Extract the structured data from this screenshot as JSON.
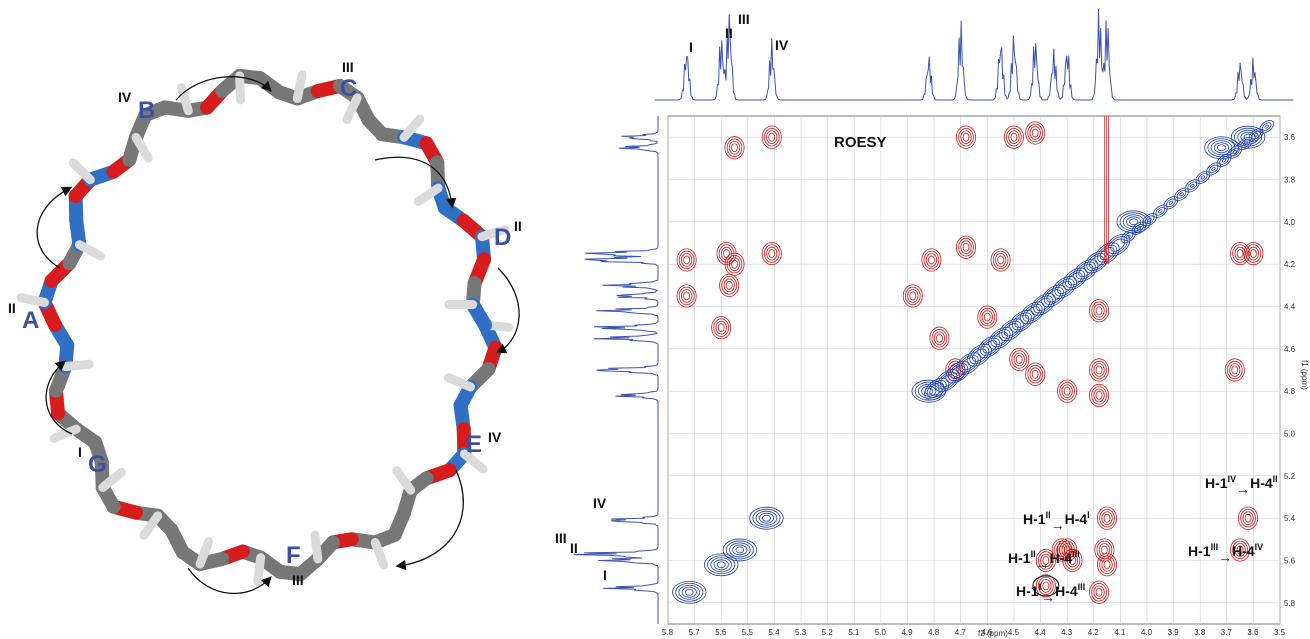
{
  "molecule": {
    "rings": [
      {
        "letter": "A",
        "roman": "II"
      },
      {
        "letter": "B",
        "roman": "IV"
      },
      {
        "letter": "C",
        "roman": "III"
      },
      {
        "letter": "D",
        "roman": "II"
      },
      {
        "letter": "E",
        "roman": "IV"
      },
      {
        "letter": "F",
        "roman": "III"
      },
      {
        "letter": "G",
        "roman": "I"
      }
    ]
  },
  "spectrum": {
    "title": "ROESY",
    "top_peak_labels": [
      "I",
      "II",
      "III",
      "IV"
    ],
    "left_peak_labels": [
      "IV",
      "III",
      "II",
      "I"
    ],
    "f2_label": "f2 (ppm)",
    "f1_label": "f1 (ppm)",
    "f2_ticks": [
      "5.8",
      "5.7",
      "5.6",
      "5.5",
      "5.4",
      "5.3",
      "5.2",
      "5.1",
      "5.0",
      "4.9",
      "4.8",
      "4.7",
      "4.6",
      "4.5",
      "4.4",
      "4.3",
      "4.2",
      "4.1",
      "4.0",
      "3.9",
      "3.8",
      "3.7",
      "3.6",
      "3.5"
    ],
    "f1_ticks": [
      "3.6",
      "3.8",
      "4.0",
      "4.2",
      "4.4",
      "4.6",
      "4.8",
      "5.0",
      "5.2",
      "5.4",
      "5.6",
      "5.8"
    ],
    "annotations": [
      {
        "from": "H-1",
        "from_sup": "II",
        "to": "H-4",
        "to_sup": "I"
      },
      {
        "from": "H-1",
        "from_sup": "II",
        "to": "H-4",
        "to_sup": "III"
      },
      {
        "from": "H-1",
        "from_sup": "I",
        "to": "H-4",
        "to_sup": "III"
      },
      {
        "from": "H-1",
        "from_sup": "IV",
        "to": "H-4",
        "to_sup": "II"
      },
      {
        "from": "H-1",
        "from_sup": "III",
        "to": "H-4",
        "to_sup": "IV"
      }
    ],
    "colors": {
      "positive": "#d01818",
      "negative": "#2040a8",
      "trace": "#3b52b6"
    }
  }
}
